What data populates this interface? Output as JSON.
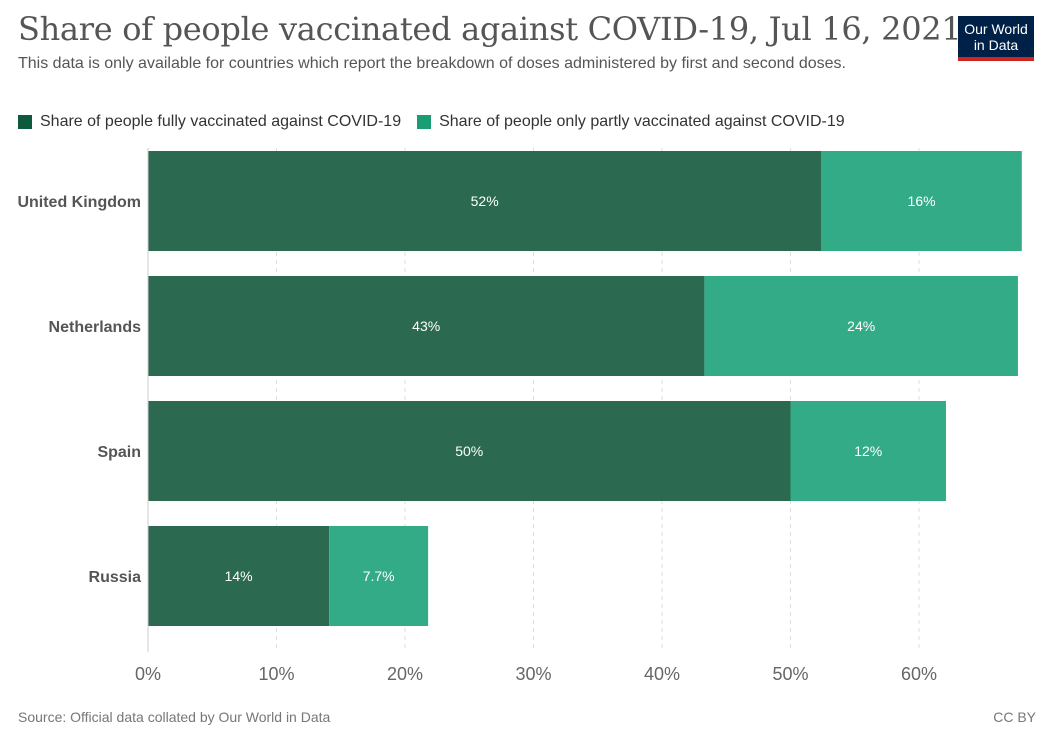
{
  "title": "Share of people vaccinated against COVID-19, Jul 16, 2021",
  "subtitle": "This data is only available for countries which report the breakdown of doses administered by first and second doses.",
  "logo": {
    "line1": "Our World",
    "line2": "in Data"
  },
  "footer": {
    "source": "Source: Official data collated by Our World in Data",
    "license": "CC BY"
  },
  "colors": {
    "fully": "#2b6a50",
    "partly": "#33ab86",
    "legend_fully": "#0d5a3c",
    "legend_partly": "#1a9d74"
  },
  "chart_data": {
    "type": "bar",
    "orientation": "horizontal",
    "stacked": true,
    "categories": [
      "United Kingdom",
      "Netherlands",
      "Spain",
      "Russia"
    ],
    "series": [
      {
        "name": "Share of people fully vaccinated against COVID-19",
        "values": [
          52.4,
          43.3,
          50.0,
          14.1
        ],
        "labels": [
          "52%",
          "43%",
          "50%",
          "14%"
        ]
      },
      {
        "name": "Share of people only partly vaccinated against COVID-19",
        "values": [
          15.6,
          24.4,
          12.1,
          7.7
        ],
        "labels": [
          "16%",
          "24%",
          "12%",
          "7.7%"
        ]
      }
    ],
    "xticks": [
      0,
      10,
      20,
      30,
      40,
      50,
      60
    ],
    "xtick_labels": [
      "0%",
      "10%",
      "20%",
      "30%",
      "40%",
      "50%",
      "60%"
    ],
    "xlim": [
      0,
      68
    ],
    "grid": true,
    "legend_position": "top-left"
  }
}
